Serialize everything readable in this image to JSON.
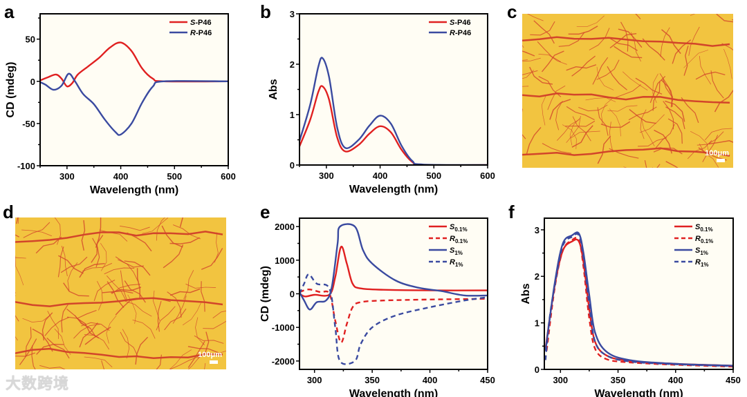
{
  "panels": {
    "a": "a",
    "b": "b",
    "c": "c",
    "d": "d",
    "e": "e",
    "f": "f"
  },
  "micrographs": [
    {
      "panel": "c",
      "scale_bar": "100μm"
    },
    {
      "panel": "d",
      "scale_bar": "100μm"
    }
  ],
  "watermark": "大数跨境",
  "colors": {
    "red": "#e02020",
    "blue": "#3a4aa0",
    "plot_bg": "#fffdf4",
    "micrograph_bg": "#f2c440",
    "vein": "#d2452a"
  },
  "chart_data": [
    {
      "panel": "a",
      "type": "line",
      "xlabel": "Wavelength (nm)",
      "ylabel": "CD (mdeg)",
      "xlim": [
        250,
        600
      ],
      "ylim": [
        -100,
        80
      ],
      "xticks": [
        300,
        400,
        500,
        600
      ],
      "yticks": [
        -100,
        -50,
        0,
        50
      ],
      "series": [
        {
          "name": "S",
          "suffix": "-P46",
          "sub": "",
          "color": "#e02020",
          "dash": false,
          "points": [
            [
              250,
              1
            ],
            [
              265,
              5
            ],
            [
              280,
              8
            ],
            [
              290,
              3
            ],
            [
              300,
              -6
            ],
            [
              310,
              -2
            ],
            [
              320,
              8
            ],
            [
              340,
              18
            ],
            [
              360,
              28
            ],
            [
              380,
              40
            ],
            [
              400,
              46
            ],
            [
              420,
              36
            ],
            [
              440,
              15
            ],
            [
              460,
              3
            ],
            [
              480,
              0
            ],
            [
              600,
              0
            ]
          ]
        },
        {
          "name": "R",
          "suffix": "-P46",
          "sub": "",
          "color": "#3a4aa0",
          "dash": false,
          "points": [
            [
              250,
              -1
            ],
            [
              260,
              -4
            ],
            [
              275,
              -10
            ],
            [
              290,
              -5
            ],
            [
              303,
              9
            ],
            [
              315,
              0
            ],
            [
              330,
              -15
            ],
            [
              350,
              -27
            ],
            [
              370,
              -45
            ],
            [
              390,
              -60
            ],
            [
              400,
              -63
            ],
            [
              420,
              -50
            ],
            [
              440,
              -25
            ],
            [
              460,
              -6
            ],
            [
              480,
              0
            ],
            [
              600,
              0
            ]
          ]
        }
      ]
    },
    {
      "panel": "b",
      "type": "line",
      "xlabel": "Wavelength (nm)",
      "ylabel": "Abs",
      "xlim": [
        250,
        600
      ],
      "ylim": [
        0,
        3
      ],
      "xticks": [
        300,
        400,
        500,
        600
      ],
      "yticks": [
        0,
        1,
        2,
        3
      ],
      "series": [
        {
          "name": "S",
          "suffix": "-P46",
          "sub": "",
          "color": "#e02020",
          "dash": false,
          "points": [
            [
              250,
              0.37
            ],
            [
              270,
              0.9
            ],
            [
              285,
              1.45
            ],
            [
              293,
              1.56
            ],
            [
              305,
              1.3
            ],
            [
              320,
              0.55
            ],
            [
              335,
              0.27
            ],
            [
              360,
              0.4
            ],
            [
              380,
              0.62
            ],
            [
              400,
              0.77
            ],
            [
              420,
              0.65
            ],
            [
              440,
              0.3
            ],
            [
              460,
              0.06
            ],
            [
              480,
              0
            ],
            [
              600,
              0
            ]
          ]
        },
        {
          "name": "R",
          "suffix": "-P46",
          "sub": "",
          "color": "#3a4aa0",
          "dash": false,
          "points": [
            [
              250,
              0.48
            ],
            [
              270,
              1.2
            ],
            [
              285,
              1.95
            ],
            [
              293,
              2.12
            ],
            [
              305,
              1.75
            ],
            [
              320,
              0.75
            ],
            [
              335,
              0.34
            ],
            [
              360,
              0.5
            ],
            [
              380,
              0.78
            ],
            [
              400,
              0.98
            ],
            [
              420,
              0.82
            ],
            [
              440,
              0.38
            ],
            [
              460,
              0.08
            ],
            [
              480,
              0.01
            ],
            [
              600,
              0
            ]
          ]
        }
      ]
    },
    {
      "panel": "e",
      "type": "line",
      "xlabel": "Wavelength (nm)",
      "ylabel": "CD (mdeg)",
      "xlim": [
        287,
        450
      ],
      "ylim": [
        -2250,
        2250
      ],
      "xticks": [
        300,
        350,
        400,
        450
      ],
      "yticks": [
        -2000,
        -1000,
        0,
        1000,
        2000
      ],
      "series": [
        {
          "name": "S",
          "suffix": "",
          "sub": "0.1%",
          "color": "#e02020",
          "dash": false,
          "points": [
            [
              287,
              0
            ],
            [
              292,
              -80
            ],
            [
              300,
              -30
            ],
            [
              313,
              -20
            ],
            [
              318,
              500
            ],
            [
              323,
              1400
            ],
            [
              328,
              900
            ],
            [
              333,
              300
            ],
            [
              340,
              160
            ],
            [
              360,
              120
            ],
            [
              400,
              100
            ],
            [
              450,
              100
            ]
          ]
        },
        {
          "name": "R",
          "suffix": "",
          "sub": "0.1%",
          "color": "#e02020",
          "dash": true,
          "points": [
            [
              287,
              50
            ],
            [
              295,
              130
            ],
            [
              305,
              50
            ],
            [
              313,
              0
            ],
            [
              318,
              -800
            ],
            [
              323,
              -1450
            ],
            [
              328,
              -900
            ],
            [
              333,
              -400
            ],
            [
              340,
              -250
            ],
            [
              360,
              -200
            ],
            [
              400,
              -170
            ],
            [
              450,
              -150
            ]
          ]
        },
        {
          "name": "S",
          "suffix": "",
          "sub": "1%",
          "color": "#3a4aa0",
          "dash": false,
          "points": [
            [
              287,
              50
            ],
            [
              291,
              -200
            ],
            [
              296,
              -470
            ],
            [
              302,
              -250
            ],
            [
              310,
              -200
            ],
            [
              315,
              200
            ],
            [
              320,
              1500
            ],
            [
              322,
              2000
            ],
            [
              335,
              2000
            ],
            [
              342,
              1300
            ],
            [
              350,
              900
            ],
            [
              370,
              400
            ],
            [
              390,
              180
            ],
            [
              410,
              80
            ],
            [
              430,
              -50
            ],
            [
              450,
              -50
            ]
          ]
        },
        {
          "name": "R",
          "suffix": "",
          "sub": "1%",
          "color": "#3a4aa0",
          "dash": true,
          "points": [
            [
              287,
              0
            ],
            [
              291,
              300
            ],
            [
              295,
              580
            ],
            [
              302,
              300
            ],
            [
              313,
              150
            ],
            [
              318,
              -1000
            ],
            [
              322,
              -2000
            ],
            [
              335,
              -2000
            ],
            [
              340,
              -1500
            ],
            [
              350,
              -1000
            ],
            [
              370,
              -650
            ],
            [
              400,
              -400
            ],
            [
              430,
              -200
            ],
            [
              450,
              -100
            ]
          ]
        }
      ]
    },
    {
      "panel": "f",
      "type": "line",
      "xlabel": "Wavelength (nm)",
      "ylabel": "Abs",
      "xlim": [
        286,
        450
      ],
      "ylim": [
        0,
        3.25
      ],
      "xticks": [
        300,
        350,
        400,
        450
      ],
      "yticks": [
        0,
        1,
        2,
        3
      ],
      "series": [
        {
          "name": "S",
          "suffix": "",
          "sub": "0.1%",
          "color": "#e02020",
          "dash": false,
          "points": [
            [
              287,
              0.45
            ],
            [
              295,
              1.8
            ],
            [
              302,
              2.55
            ],
            [
              310,
              2.75
            ],
            [
              316,
              2.75
            ],
            [
              320,
              2.3
            ],
            [
              325,
              1.3
            ],
            [
              330,
              0.6
            ],
            [
              340,
              0.3
            ],
            [
              360,
              0.18
            ],
            [
              400,
              0.12
            ],
            [
              450,
              0.08
            ]
          ]
        },
        {
          "name": "R",
          "suffix": "",
          "sub": "0.1%",
          "color": "#e02020",
          "dash": true,
          "points": [
            [
              288,
              0.4
            ],
            [
              295,
              1.75
            ],
            [
              302,
              2.55
            ],
            [
              310,
              2.78
            ],
            [
              316,
              2.78
            ],
            [
              320,
              2.2
            ],
            [
              325,
              1.1
            ],
            [
              330,
              0.45
            ],
            [
              340,
              0.22
            ],
            [
              360,
              0.15
            ],
            [
              400,
              0.1
            ],
            [
              450,
              0.06
            ]
          ]
        },
        {
          "name": "S",
          "suffix": "",
          "sub": "1%",
          "color": "#3a4aa0",
          "dash": false,
          "points": [
            [
              287,
              0.4
            ],
            [
              295,
              1.85
            ],
            [
              302,
              2.7
            ],
            [
              310,
              2.88
            ],
            [
              316,
              2.92
            ],
            [
              320,
              2.5
            ],
            [
              325,
              1.6
            ],
            [
              330,
              0.8
            ],
            [
              340,
              0.38
            ],
            [
              360,
              0.2
            ],
            [
              400,
              0.12
            ],
            [
              450,
              0.08
            ]
          ]
        },
        {
          "name": "R",
          "suffix": "",
          "sub": "1%",
          "color": "#3a4aa0",
          "dash": true,
          "points": [
            [
              287,
              0.2
            ],
            [
              290,
              1.0
            ],
            [
              295,
              1.8
            ],
            [
              302,
              2.65
            ],
            [
              310,
              2.85
            ],
            [
              316,
              2.88
            ],
            [
              320,
              2.4
            ],
            [
              325,
              1.4
            ],
            [
              330,
              0.6
            ],
            [
              340,
              0.3
            ],
            [
              360,
              0.17
            ],
            [
              400,
              0.11
            ],
            [
              450,
              0.07
            ]
          ]
        }
      ]
    }
  ]
}
